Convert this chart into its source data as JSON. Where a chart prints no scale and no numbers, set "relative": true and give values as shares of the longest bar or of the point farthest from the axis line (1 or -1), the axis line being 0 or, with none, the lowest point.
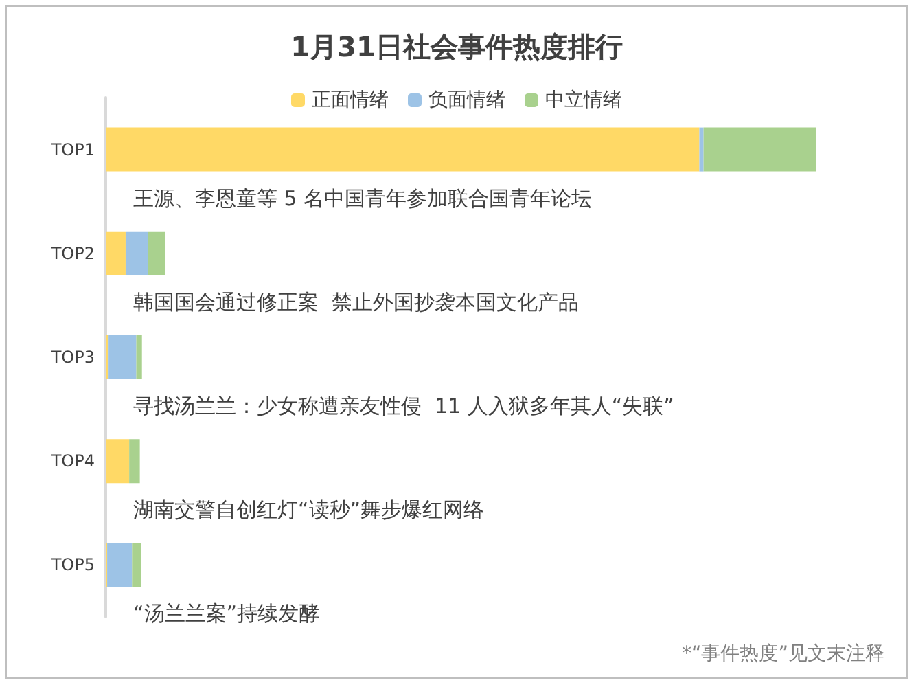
{
  "chart_data": {
    "type": "bar",
    "orientation": "horizontal",
    "stacked": true,
    "relative": true,
    "title": "1月31日社会事件热度排行",
    "categories": [
      "TOP1",
      "TOP2",
      "TOP3",
      "TOP4",
      "TOP5"
    ],
    "series": [
      {
        "name": "正面情绪",
        "color": "#ffd966",
        "values": [
          0.836,
          0.028,
          0.004,
          0.033,
          0.002
        ]
      },
      {
        "name": "负面情绪",
        "color": "#9dc3e6",
        "values": [
          0.006,
          0.031,
          0.039,
          0,
          0.035
        ]
      },
      {
        "name": "中立情绪",
        "color": "#a9d18e",
        "values": [
          0.158,
          0.025,
          0.008,
          0.015,
          0.013
        ]
      }
    ],
    "annotations": [
      "王源、李恩童等 5 名中国青年参加联合国青年论坛",
      "韩国国会通过修正案  禁止外国抄袭本国文化产品",
      "寻找汤兰兰：少女称遭亲友性侵  11 人入狱多年其人“失联”",
      "湖南交警自创红灯“读秒”舞步爆红网络",
      "“汤兰兰案”持续发酵",
      "*“事件热度”见文末注释"
    ],
    "legend": "top"
  }
}
